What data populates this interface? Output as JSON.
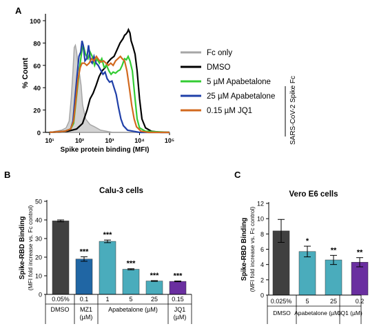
{
  "panels": {
    "a_label": "A",
    "b_label": "B",
    "c_label": "C"
  },
  "chart_data": [
    {
      "type": "line",
      "panel": "A",
      "ylabel": "% Count",
      "xlabel": "Spike protein binding (MFI)",
      "x_scale": "log",
      "x_ticks": [
        "10¹",
        "10²",
        "10³",
        "10⁴",
        "10⁵"
      ],
      "y_ticks": [
        "0",
        "20",
        "40",
        "60",
        "80",
        "100"
      ],
      "ylim": [
        0,
        100
      ],
      "legend_group_label": "SARS-CoV-2 Spike Fc",
      "series": [
        {
          "name": "Fc only",
          "color": "#a6a6a6",
          "filled": true,
          "points": [
            [
              1.0,
              0
            ],
            [
              1.2,
              1
            ],
            [
              1.4,
              2
            ],
            [
              1.55,
              4
            ],
            [
              1.65,
              10
            ],
            [
              1.72,
              30
            ],
            [
              1.78,
              55
            ],
            [
              1.82,
              76
            ],
            [
              1.86,
              78
            ],
            [
              1.9,
              72
            ],
            [
              1.95,
              60
            ],
            [
              2.0,
              52
            ],
            [
              2.05,
              42
            ],
            [
              2.1,
              25
            ],
            [
              2.2,
              12
            ],
            [
              2.35,
              7
            ],
            [
              2.5,
              5
            ],
            [
              2.7,
              2
            ],
            [
              2.9,
              1
            ],
            [
              3.1,
              0
            ],
            [
              5.0,
              0
            ]
          ]
        },
        {
          "name": "DMSO",
          "color": "#000000",
          "points": [
            [
              1.0,
              0
            ],
            [
              1.6,
              1
            ],
            [
              1.9,
              3
            ],
            [
              2.1,
              8
            ],
            [
              2.25,
              20
            ],
            [
              2.35,
              30
            ],
            [
              2.45,
              35
            ],
            [
              2.55,
              42
            ],
            [
              2.65,
              50
            ],
            [
              2.75,
              55
            ],
            [
              2.85,
              58
            ],
            [
              2.95,
              63
            ],
            [
              3.05,
              66
            ],
            [
              3.15,
              68
            ],
            [
              3.25,
              74
            ],
            [
              3.35,
              80
            ],
            [
              3.45,
              84
            ],
            [
              3.5,
              87
            ],
            [
              3.55,
              88
            ],
            [
              3.6,
              90
            ],
            [
              3.63,
              92
            ],
            [
              3.68,
              89
            ],
            [
              3.72,
              82
            ],
            [
              3.78,
              77
            ],
            [
              3.85,
              70
            ],
            [
              3.92,
              55
            ],
            [
              4.0,
              30
            ],
            [
              4.08,
              12
            ],
            [
              4.2,
              4
            ],
            [
              4.4,
              1
            ],
            [
              4.7,
              0
            ],
            [
              5.0,
              0
            ]
          ]
        },
        {
          "name": "5 µM Apabetalone",
          "color": "#33cc33",
          "points": [
            [
              1.0,
              0
            ],
            [
              1.5,
              1
            ],
            [
              1.7,
              3
            ],
            [
              1.8,
              8
            ],
            [
              1.88,
              28
            ],
            [
              1.95,
              45
            ],
            [
              2.02,
              62
            ],
            [
              2.08,
              74
            ],
            [
              2.12,
              78
            ],
            [
              2.2,
              70
            ],
            [
              2.28,
              66
            ],
            [
              2.35,
              72
            ],
            [
              2.42,
              68
            ],
            [
              2.5,
              60
            ],
            [
              2.58,
              66
            ],
            [
              2.66,
              62
            ],
            [
              2.74,
              66
            ],
            [
              2.82,
              58
            ],
            [
              2.9,
              60
            ],
            [
              2.98,
              55
            ],
            [
              3.05,
              52
            ],
            [
              3.12,
              54
            ],
            [
              3.2,
              53
            ],
            [
              3.28,
              55
            ],
            [
              3.35,
              56
            ],
            [
              3.42,
              60
            ],
            [
              3.5,
              66
            ],
            [
              3.56,
              65
            ],
            [
              3.62,
              68
            ],
            [
              3.68,
              64
            ],
            [
              3.76,
              55
            ],
            [
              3.85,
              30
            ],
            [
              3.92,
              12
            ],
            [
              4.0,
              4
            ],
            [
              4.2,
              1
            ],
            [
              5.0,
              0
            ]
          ]
        },
        {
          "name": "25 µM Apabetalone",
          "color": "#1f3fa8",
          "points": [
            [
              1.0,
              0
            ],
            [
              1.5,
              1
            ],
            [
              1.7,
              3
            ],
            [
              1.78,
              10
            ],
            [
              1.85,
              32
            ],
            [
              1.92,
              52
            ],
            [
              1.98,
              68
            ],
            [
              2.04,
              72
            ],
            [
              2.08,
              82
            ],
            [
              2.12,
              78
            ],
            [
              2.18,
              64
            ],
            [
              2.24,
              66
            ],
            [
              2.3,
              78
            ],
            [
              2.36,
              64
            ],
            [
              2.42,
              62
            ],
            [
              2.48,
              68
            ],
            [
              2.55,
              62
            ],
            [
              2.62,
              60
            ],
            [
              2.7,
              56
            ],
            [
              2.78,
              52
            ],
            [
              2.85,
              54
            ],
            [
              2.92,
              48
            ],
            [
              3.0,
              45
            ],
            [
              3.08,
              46
            ],
            [
              3.15,
              40
            ],
            [
              3.22,
              34
            ],
            [
              3.3,
              22
            ],
            [
              3.38,
              12
            ],
            [
              3.46,
              6
            ],
            [
              3.6,
              2
            ],
            [
              3.8,
              1
            ],
            [
              4.0,
              0
            ],
            [
              5.0,
              0
            ]
          ]
        },
        {
          "name": "0.15 µM JQ1",
          "color": "#d2691e",
          "points": [
            [
              1.0,
              0
            ],
            [
              1.5,
              1
            ],
            [
              1.7,
              3
            ],
            [
              1.8,
              10
            ],
            [
              1.88,
              30
            ],
            [
              1.95,
              48
            ],
            [
              2.02,
              58
            ],
            [
              2.08,
              62
            ],
            [
              2.16,
              62
            ],
            [
              2.24,
              60
            ],
            [
              2.32,
              62
            ],
            [
              2.4,
              66
            ],
            [
              2.48,
              64
            ],
            [
              2.56,
              68
            ],
            [
              2.64,
              65
            ],
            [
              2.72,
              63
            ],
            [
              2.8,
              64
            ],
            [
              2.88,
              62
            ],
            [
              2.96,
              60
            ],
            [
              3.04,
              62
            ],
            [
              3.12,
              60
            ],
            [
              3.2,
              64
            ],
            [
              3.28,
              66
            ],
            [
              3.36,
              68
            ],
            [
              3.42,
              66
            ],
            [
              3.5,
              64
            ],
            [
              3.58,
              55
            ],
            [
              3.66,
              40
            ],
            [
              3.74,
              24
            ],
            [
              3.82,
              12
            ],
            [
              3.9,
              5
            ],
            [
              4.05,
              1
            ],
            [
              4.3,
              0
            ],
            [
              5.0,
              0
            ]
          ]
        }
      ]
    },
    {
      "type": "bar",
      "panel": "B",
      "title": "Calu-3 cells",
      "ylabel": "Spike-RBD Binding",
      "ylabel_sub": "(MFI fold increase vs. Fc control)",
      "ylim": [
        0,
        50
      ],
      "y_ticks": [
        "0",
        "10",
        "20",
        "30",
        "40",
        "50"
      ],
      "doses": [
        "0.05%",
        "0.1",
        "1",
        "5",
        "25",
        "0.15"
      ],
      "treatments": [
        "DMSO",
        "MZ1\n(µM)",
        "Apabetalone (µM)",
        "JQ1\n(µM)"
      ],
      "values": [
        39.5,
        19,
        28.5,
        13.5,
        7.2,
        7.0
      ],
      "errors": [
        0.5,
        1.2,
        0.7,
        0.3,
        0.2,
        0.2
      ],
      "colors": [
        "#404040",
        "#2066a4",
        "#4aacbc",
        "#4aacbc",
        "#4aacbc",
        "#6a2fa0"
      ],
      "significance": [
        "",
        "***",
        "***",
        "***",
        "***",
        "***"
      ]
    },
    {
      "type": "bar",
      "panel": "C",
      "title": "Vero E6 cells",
      "ylabel": "Spike-RBD Binding",
      "ylabel_sub": "(MFI fold increase vs. Fc control)",
      "ylim": [
        0,
        12
      ],
      "y_ticks": [
        "0",
        "2",
        "4",
        "6",
        "8",
        "10",
        "12"
      ],
      "doses": [
        "0.025%",
        "5",
        "25",
        "0.2"
      ],
      "treatments": [
        "DMSO",
        "Apabetalone (µM)",
        "JQ1 (µM)"
      ],
      "values": [
        8.4,
        5.7,
        4.6,
        4.3
      ],
      "errors": [
        1.5,
        0.7,
        0.6,
        0.6
      ],
      "colors": [
        "#404040",
        "#4aacbc",
        "#4aacbc",
        "#6a2fa0"
      ],
      "significance": [
        "",
        "*",
        "**",
        "**"
      ]
    }
  ]
}
